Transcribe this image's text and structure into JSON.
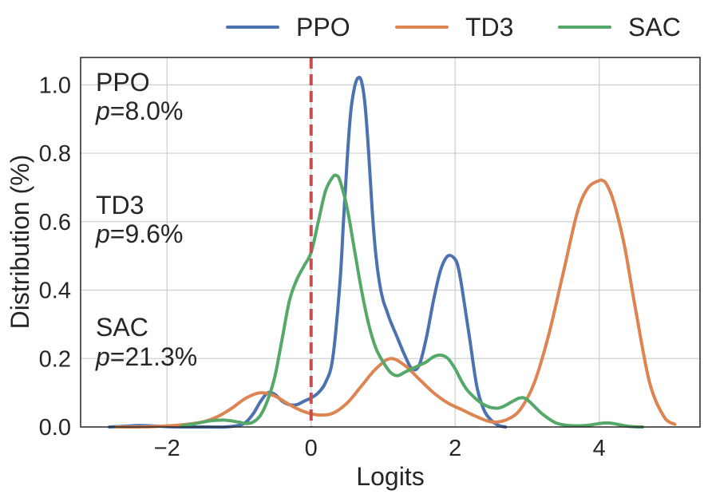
{
  "chart_data": {
    "type": "line",
    "xlabel": "Logits",
    "ylabel": "Distribution (%)",
    "xlim": [
      -3.2,
      5.4
    ],
    "ylim": [
      0,
      1.08
    ],
    "xticks": [
      -2,
      0,
      2,
      4
    ],
    "xtick_labels": [
      "−2",
      "0",
      "2",
      "4"
    ],
    "yticks": [
      0.0,
      0.2,
      0.4,
      0.6,
      0.8,
      1.0
    ],
    "ytick_labels": [
      "0.0",
      "0.2",
      "0.4",
      "0.6",
      "0.8",
      "1.0"
    ],
    "grid": true,
    "legend_position": "top-center, outside",
    "threshold": {
      "x": 0,
      "color": "#c44e52",
      "style": "dashed"
    },
    "series": [
      {
        "name": "PPO",
        "color": "#4c72b0",
        "x": [
          -2.8,
          -2.6,
          -2.4,
          -2.2,
          -2.0,
          -1.8,
          -1.6,
          -1.4,
          -1.2,
          -1.0,
          -0.9,
          -0.8,
          -0.7,
          -0.6,
          -0.5,
          -0.4,
          -0.3,
          -0.2,
          -0.1,
          0.0,
          0.1,
          0.2,
          0.3,
          0.4,
          0.45,
          0.5,
          0.55,
          0.6,
          0.65,
          0.7,
          0.75,
          0.8,
          0.85,
          0.9,
          0.95,
          1.0,
          1.05,
          1.1,
          1.2,
          1.3,
          1.4,
          1.5,
          1.6,
          1.7,
          1.8,
          1.9,
          2.0,
          2.05,
          2.1,
          2.2,
          2.3,
          2.4,
          2.5,
          2.6,
          2.7
        ],
        "y": [
          0.0,
          0.002,
          0.004,
          0.003,
          0.001,
          0.0,
          0.0,
          0.0,
          0.0,
          0.005,
          0.015,
          0.04,
          0.075,
          0.1,
          0.095,
          0.075,
          0.065,
          0.065,
          0.075,
          0.085,
          0.1,
          0.13,
          0.2,
          0.42,
          0.6,
          0.78,
          0.92,
          0.99,
          1.02,
          1.01,
          0.94,
          0.8,
          0.63,
          0.5,
          0.42,
          0.37,
          0.34,
          0.31,
          0.26,
          0.21,
          0.17,
          0.18,
          0.26,
          0.37,
          0.46,
          0.5,
          0.49,
          0.46,
          0.4,
          0.26,
          0.12,
          0.05,
          0.02,
          0.005,
          0.0
        ]
      },
      {
        "name": "TD3",
        "color": "#dd8452",
        "x": [
          -2.7,
          -2.4,
          -2.1,
          -1.8,
          -1.5,
          -1.3,
          -1.1,
          -0.9,
          -0.7,
          -0.5,
          -0.3,
          -0.1,
          0.1,
          0.3,
          0.5,
          0.7,
          0.9,
          1.1,
          1.3,
          1.5,
          1.7,
          1.9,
          2.1,
          2.3,
          2.5,
          2.7,
          2.9,
          3.1,
          3.3,
          3.5,
          3.7,
          3.85,
          4.0,
          4.05,
          4.1,
          4.2,
          4.35,
          4.5,
          4.7,
          4.9,
          5.05
        ],
        "y": [
          0.0,
          0.0,
          0.002,
          0.006,
          0.015,
          0.03,
          0.055,
          0.085,
          0.1,
          0.09,
          0.065,
          0.045,
          0.035,
          0.04,
          0.07,
          0.12,
          0.17,
          0.2,
          0.18,
          0.14,
          0.1,
          0.07,
          0.05,
          0.03,
          0.015,
          0.02,
          0.05,
          0.13,
          0.27,
          0.45,
          0.63,
          0.7,
          0.72,
          0.72,
          0.71,
          0.66,
          0.53,
          0.35,
          0.13,
          0.03,
          0.008
        ]
      },
      {
        "name": "SAC",
        "color": "#55a868",
        "x": [
          -1.8,
          -1.6,
          -1.4,
          -1.2,
          -1.0,
          -0.9,
          -0.8,
          -0.7,
          -0.6,
          -0.5,
          -0.4,
          -0.3,
          -0.2,
          -0.1,
          0.0,
          0.1,
          0.2,
          0.3,
          0.35,
          0.4,
          0.5,
          0.6,
          0.7,
          0.8,
          0.9,
          1.0,
          1.1,
          1.2,
          1.3,
          1.4,
          1.5,
          1.6,
          1.7,
          1.8,
          1.9,
          2.0,
          2.1,
          2.2,
          2.4,
          2.6,
          2.8,
          2.9,
          3.0,
          3.2,
          3.4,
          3.6,
          3.8,
          4.0,
          4.1,
          4.2,
          4.4,
          4.6
        ],
        "y": [
          0.003,
          0.01,
          0.018,
          0.02,
          0.014,
          0.01,
          0.015,
          0.035,
          0.08,
          0.15,
          0.26,
          0.37,
          0.43,
          0.47,
          0.51,
          0.6,
          0.69,
          0.73,
          0.735,
          0.72,
          0.64,
          0.52,
          0.4,
          0.3,
          0.23,
          0.19,
          0.16,
          0.15,
          0.16,
          0.17,
          0.18,
          0.19,
          0.205,
          0.21,
          0.2,
          0.17,
          0.13,
          0.1,
          0.065,
          0.055,
          0.075,
          0.085,
          0.08,
          0.04,
          0.012,
          0.004,
          0.004,
          0.01,
          0.012,
          0.01,
          0.002,
          0.0
        ]
      }
    ],
    "annotations": [
      {
        "label": "PPO",
        "p_prefix": "p",
        "p_value": "=8.0%"
      },
      {
        "label": "TD3",
        "p_prefix": "p",
        "p_value": "=9.6%"
      },
      {
        "label": "SAC",
        "p_prefix": "p",
        "p_value": "=21.3%"
      }
    ]
  }
}
